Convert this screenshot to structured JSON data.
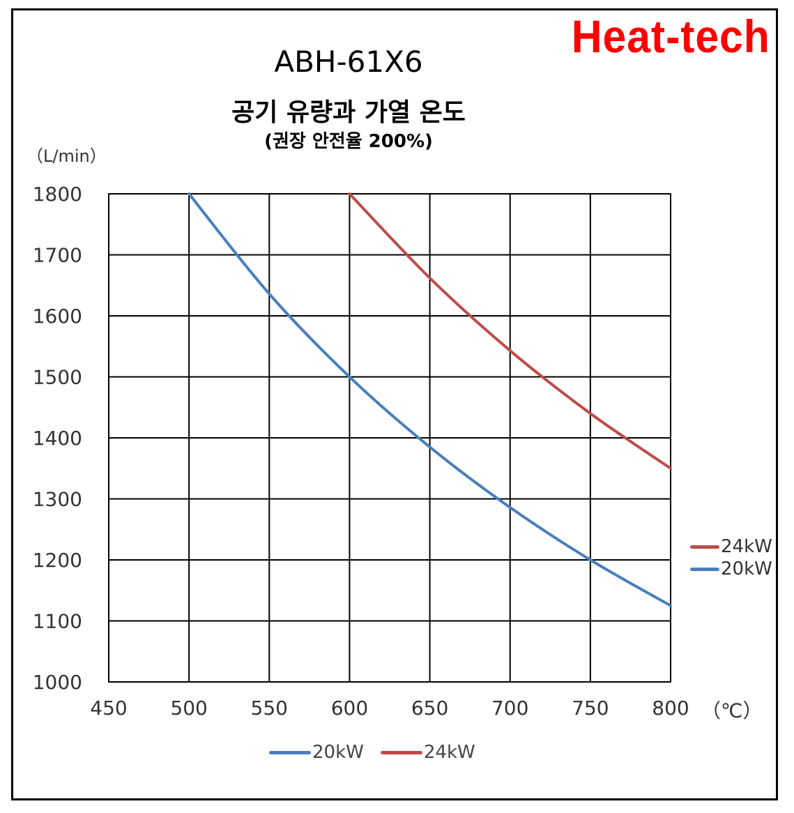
{
  "brand": "Heat-tech",
  "chart_data": {
    "type": "line",
    "title": "ABH-61X6",
    "subtitle": "공기 유량과 가열 온도",
    "subtitle2": "(권장 안전율 200%)",
    "ylabel": "（L/min）",
    "xlabel": "（℃）",
    "xlim": [
      450,
      800
    ],
    "ylim": [
      1000,
      1800
    ],
    "xticks": [
      "450",
      "500",
      "550",
      "600",
      "650",
      "700",
      "750",
      "800"
    ],
    "yticks": [
      "1800",
      "1700",
      "1600",
      "1500",
      "1400",
      "1300",
      "1200",
      "1100",
      "1000"
    ],
    "grid": true,
    "series": [
      {
        "name": "20kW",
        "color": "#4a7ebb",
        "x": [
          500,
          550,
          600,
          650,
          700,
          750,
          800
        ],
        "y": [
          1800,
          1636,
          1500,
          1385,
          1286,
          1200,
          1125
        ]
      },
      {
        "name": "24kW",
        "color": "#be4b48",
        "x": [
          600,
          650,
          700,
          750,
          800
        ],
        "y": [
          1800,
          1662,
          1543,
          1440,
          1350
        ]
      }
    ],
    "legend_side": [
      "24kW",
      "20kW"
    ],
    "legend_bottom": [
      "20kW",
      "24kW"
    ],
    "legend_placement": "right and bottom"
  }
}
